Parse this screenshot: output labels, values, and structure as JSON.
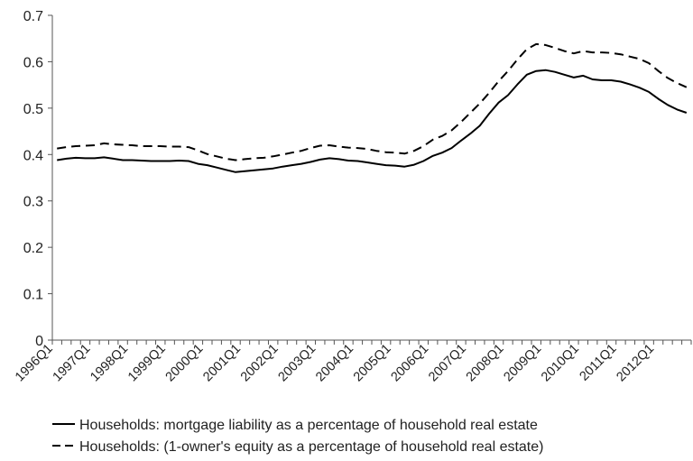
{
  "chart_data": {
    "type": "line",
    "title": "",
    "xlabel": "",
    "ylabel": "",
    "ylim": [
      0,
      0.7
    ],
    "yticks": [
      0,
      0.1,
      0.2,
      0.3,
      0.4,
      0.5,
      0.6,
      0.7
    ],
    "ytick_labels": [
      "0",
      "0.1",
      "0.2",
      "0.3",
      "0.4",
      "0.5",
      "0.6",
      "0.7"
    ],
    "grid": false,
    "legend_position": "bottom",
    "x_tick_labels": [
      "1996Q1",
      "1997Q1",
      "1998Q1",
      "1999Q1",
      "2000Q1",
      "2001Q1",
      "2002Q1",
      "2003Q1",
      "2004Q1",
      "2005Q1",
      "2006Q1",
      "2007Q1",
      "2008Q1",
      "2009Q1",
      "2010Q1",
      "2011Q1",
      "2012Q1"
    ],
    "x": [
      "1996Q1",
      "1996Q2",
      "1996Q3",
      "1996Q4",
      "1997Q1",
      "1997Q2",
      "1997Q3",
      "1997Q4",
      "1998Q1",
      "1998Q2",
      "1998Q3",
      "1998Q4",
      "1999Q1",
      "1999Q2",
      "1999Q3",
      "1999Q4",
      "2000Q1",
      "2000Q2",
      "2000Q3",
      "2000Q4",
      "2001Q1",
      "2001Q2",
      "2001Q3",
      "2001Q4",
      "2002Q1",
      "2002Q2",
      "2002Q3",
      "2002Q4",
      "2003Q1",
      "2003Q2",
      "2003Q3",
      "2003Q4",
      "2004Q1",
      "2004Q2",
      "2004Q3",
      "2004Q4",
      "2005Q1",
      "2005Q2",
      "2005Q3",
      "2005Q4",
      "2006Q1",
      "2006Q2",
      "2006Q3",
      "2006Q4",
      "2007Q1",
      "2007Q2",
      "2007Q3",
      "2007Q4",
      "2008Q1",
      "2008Q2",
      "2008Q3",
      "2008Q4",
      "2009Q1",
      "2009Q2",
      "2009Q3",
      "2009Q4",
      "2010Q1",
      "2010Q2",
      "2010Q3",
      "2010Q4",
      "2011Q1",
      "2011Q2",
      "2011Q3",
      "2011Q4",
      "2012Q1",
      "2012Q2",
      "2012Q3",
      "2012Q4"
    ],
    "series": [
      {
        "name": "Households: mortgage liability as a percentage of household real estate",
        "style": "solid",
        "color": "#000000",
        "values": [
          0.388,
          0.391,
          0.393,
          0.392,
          0.392,
          0.394,
          0.391,
          0.388,
          0.388,
          0.387,
          0.386,
          0.386,
          0.386,
          0.387,
          0.386,
          0.38,
          0.377,
          0.372,
          0.367,
          0.362,
          0.364,
          0.366,
          0.368,
          0.37,
          0.374,
          0.377,
          0.38,
          0.384,
          0.389,
          0.392,
          0.39,
          0.387,
          0.386,
          0.383,
          0.38,
          0.377,
          0.376,
          0.374,
          0.378,
          0.386,
          0.397,
          0.404,
          0.414,
          0.43,
          0.445,
          0.462,
          0.488,
          0.512,
          0.528,
          0.551,
          0.572,
          0.58,
          0.582,
          0.578,
          0.572,
          0.566,
          0.57,
          0.562,
          0.56,
          0.56,
          0.557,
          0.551,
          0.544,
          0.535,
          0.52,
          0.507,
          0.497,
          0.49
        ]
      },
      {
        "name": "Households: (1-owner's equity as a percentage of household real estate)",
        "style": "dashed",
        "color": "#000000",
        "values": [
          0.413,
          0.416,
          0.418,
          0.419,
          0.42,
          0.424,
          0.422,
          0.421,
          0.42,
          0.418,
          0.418,
          0.418,
          0.417,
          0.417,
          0.416,
          0.409,
          0.401,
          0.396,
          0.391,
          0.388,
          0.39,
          0.392,
          0.393,
          0.396,
          0.4,
          0.404,
          0.408,
          0.414,
          0.419,
          0.42,
          0.417,
          0.415,
          0.414,
          0.412,
          0.408,
          0.405,
          0.404,
          0.402,
          0.408,
          0.418,
          0.432,
          0.44,
          0.452,
          0.47,
          0.49,
          0.51,
          0.533,
          0.558,
          0.58,
          0.605,
          0.627,
          0.638,
          0.636,
          0.63,
          0.623,
          0.618,
          0.623,
          0.62,
          0.62,
          0.619,
          0.616,
          0.611,
          0.606,
          0.597,
          0.58,
          0.565,
          0.554,
          0.545
        ]
      }
    ]
  }
}
